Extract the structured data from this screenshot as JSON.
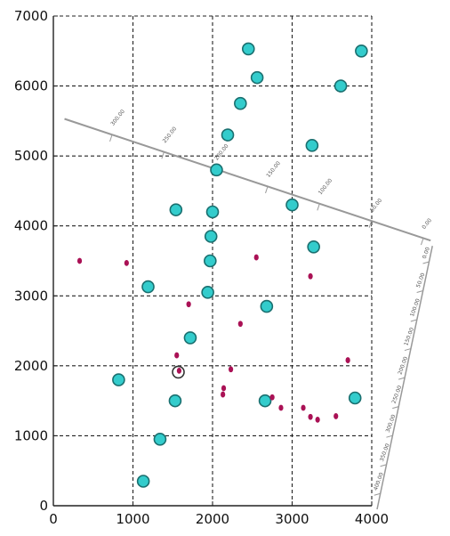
{
  "chart_data": {
    "type": "scatter",
    "title": "",
    "xlabel": "",
    "ylabel": "",
    "xlim": [
      0,
      4000
    ],
    "ylim": [
      0,
      7000
    ],
    "x_ticks": [
      0,
      1000,
      2000,
      3000,
      4000
    ],
    "y_ticks": [
      0,
      1000,
      2000,
      3000,
      4000,
      5000,
      6000,
      7000
    ],
    "x_tick_labels": [
      "0",
      "1000",
      "2000",
      "3000",
      "4000"
    ],
    "y_tick_labels": [
      "0",
      "1000",
      "2000",
      "3000",
      "4000",
      "5000",
      "6000",
      "7000"
    ],
    "grid": true,
    "grid_style": "dashed",
    "series": [
      {
        "color": "#33cccc",
        "marker": "large-circle",
        "points": [
          [
            2450,
            6530
          ],
          [
            3870,
            6500
          ],
          [
            2560,
            6120
          ],
          [
            3610,
            6000
          ],
          [
            2350,
            5750
          ],
          [
            2190,
            5300
          ],
          [
            3250,
            5150
          ],
          [
            2050,
            4800
          ],
          [
            3000,
            4300
          ],
          [
            1540,
            4230
          ],
          [
            2000,
            4200
          ],
          [
            1980,
            3850
          ],
          [
            3270,
            3700
          ],
          [
            1970,
            3500
          ],
          [
            1190,
            3130
          ],
          [
            1940,
            3050
          ],
          [
            2680,
            2850
          ],
          [
            1720,
            2400
          ],
          [
            820,
            1800
          ],
          [
            1530,
            1500
          ],
          [
            2660,
            1500
          ],
          [
            3790,
            1540
          ],
          [
            1340,
            950
          ],
          [
            1130,
            350
          ]
        ]
      },
      {
        "color": "#aa1155",
        "marker": "small-dot",
        "points": [
          [
            330,
            3500
          ],
          [
            920,
            3470
          ],
          [
            2550,
            3550
          ],
          [
            3230,
            3280
          ],
          [
            1700,
            2880
          ],
          [
            2350,
            2600
          ],
          [
            1550,
            2150
          ],
          [
            1580,
            1930
          ],
          [
            2230,
            1950
          ],
          [
            3700,
            2080
          ],
          [
            2140,
            1680
          ],
          [
            2130,
            1590
          ],
          [
            2750,
            1550
          ],
          [
            2860,
            1400
          ],
          [
            3140,
            1400
          ],
          [
            3230,
            1270
          ],
          [
            3320,
            1230
          ],
          [
            3550,
            1280
          ]
        ]
      }
    ],
    "special_points": [
      {
        "x": 1570,
        "y": 1910,
        "marker": "hollow-circle"
      }
    ],
    "diagonal_axis": {
      "color": "#999999",
      "start": [
        140,
        5530
      ],
      "end": [
        4740,
        3790
      ],
      "tick_labels": [
        "300.00",
        "250.00",
        "200.00",
        "150.00",
        "100.00",
        "50.00",
        "0.00"
      ]
    },
    "secondary_axis": {
      "color": "#999999",
      "tick_labels": [
        "0.00",
        "50.00",
        "100.00",
        "150.00",
        "200.00",
        "250.00",
        "300.00",
        "350.00",
        "400.00"
      ]
    }
  }
}
